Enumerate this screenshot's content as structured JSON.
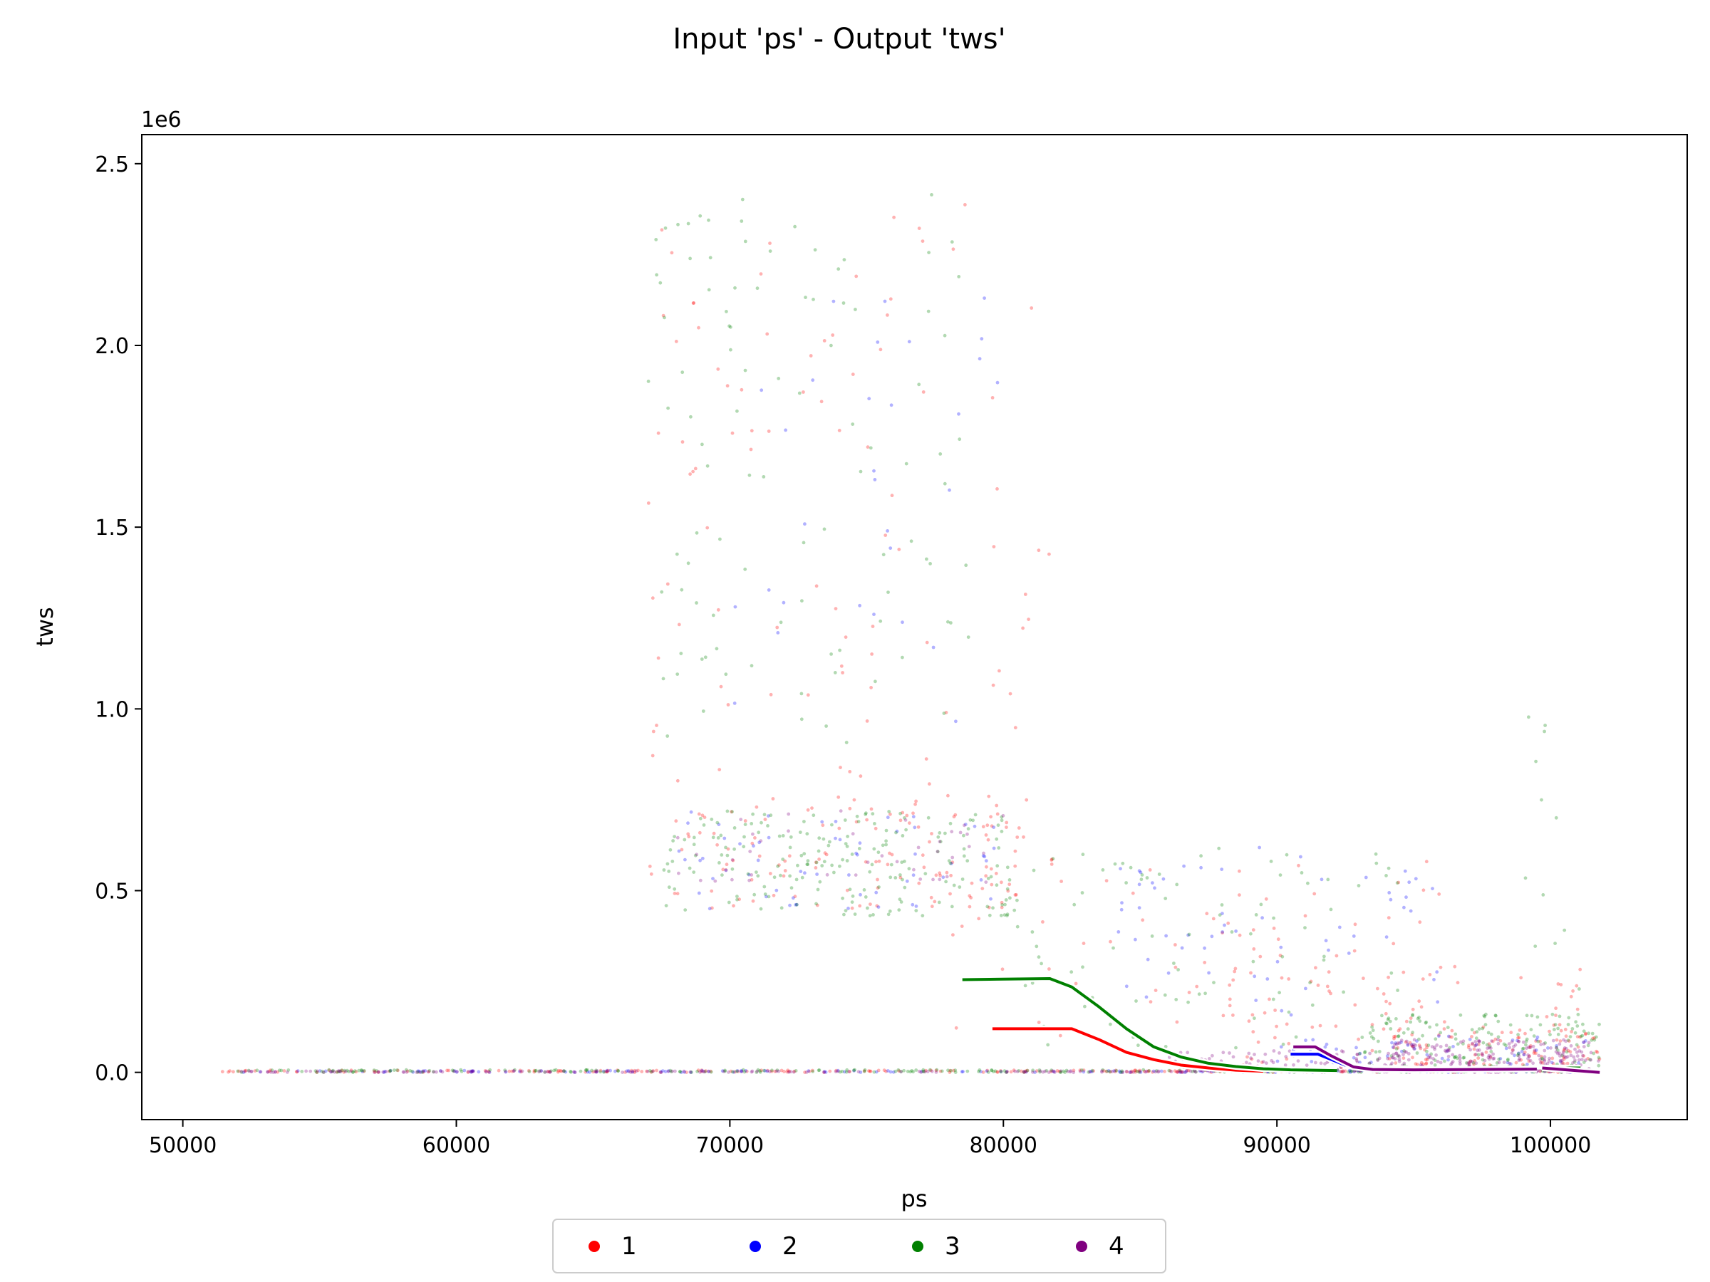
{
  "chart_data": {
    "type": "scatter",
    "title": "Input 'ps' - Output 'tws'",
    "xlabel": "ps",
    "ylabel": "tws",
    "y_offset_label": "1e6",
    "xlim": [
      48500,
      105000
    ],
    "ylim": [
      -130000,
      2580000
    ],
    "x_ticks": [
      50000,
      60000,
      70000,
      80000,
      90000,
      100000
    ],
    "x_tick_labels": [
      "50000",
      "60000",
      "70000",
      "80000",
      "90000",
      "100000"
    ],
    "y_ticks": [
      0,
      500000,
      1000000,
      1500000,
      2000000,
      2500000
    ],
    "y_tick_labels": [
      "0.0",
      "0.5",
      "1.0",
      "1.5",
      "2.0",
      "2.5"
    ],
    "legend": {
      "placement": "bottom-center",
      "entries": [
        {
          "label": "1",
          "color": "#ff0000"
        },
        {
          "label": "2",
          "color": "#0000ff"
        },
        {
          "label": "3",
          "color": "#008000"
        },
        {
          "label": "4",
          "color": "#800080"
        }
      ]
    },
    "series": [
      {
        "name": "1",
        "color": "#ff0000",
        "fit_line": [
          [
            79600,
            120000
          ],
          [
            82500,
            120000
          ],
          [
            83500,
            90000
          ],
          [
            84500,
            55000
          ],
          [
            85500,
            35000
          ],
          [
            86500,
            20000
          ],
          [
            87500,
            12000
          ],
          [
            88500,
            6000
          ],
          [
            89500,
            3000
          ]
        ],
        "scatter_regions": [
          {
            "x": [
              51000,
              101500
            ],
            "y": [
              0,
              6000
            ],
            "n": 220
          },
          {
            "x": [
              67000,
              81000
            ],
            "y": [
              450000,
              760000
            ],
            "n": 130
          },
          {
            "x": [
              67000,
              82000
            ],
            "y": [
              760000,
              2460000
            ],
            "n": 90
          },
          {
            "x": [
              78000,
              96000
            ],
            "y": [
              100000,
              600000
            ],
            "n": 70
          },
          {
            "x": [
              88000,
              101500
            ],
            "y": [
              0,
              300000
            ],
            "n": 90
          },
          {
            "x": [
              94000,
              101800
            ],
            "y": [
              20000,
              120000
            ],
            "n": 90
          }
        ]
      },
      {
        "name": "2",
        "color": "#0000ff",
        "fit_line": [
          [
            90500,
            50000
          ],
          [
            91500,
            50000
          ],
          [
            92000,
            35000
          ],
          [
            92500,
            20000
          ],
          [
            93500,
            12000
          ],
          [
            95500,
            8000
          ]
        ],
        "scatter_regions": [
          {
            "x": [
              52000,
              101500
            ],
            "y": [
              0,
              5000
            ],
            "n": 140
          },
          {
            "x": [
              68000,
              80000
            ],
            "y": [
              450000,
              720000
            ],
            "n": 60
          },
          {
            "x": [
              70000,
              80000
            ],
            "y": [
              900000,
              2200000
            ],
            "n": 30
          },
          {
            "x": [
              84000,
              96000
            ],
            "y": [
              150000,
              620000
            ],
            "n": 60
          },
          {
            "x": [
              90000,
              101500
            ],
            "y": [
              20000,
              100000
            ],
            "n": 60
          }
        ]
      },
      {
        "name": "3",
        "color": "#008000",
        "fit_line": [
          [
            78500,
            255000
          ],
          [
            81700,
            258000
          ],
          [
            82500,
            235000
          ],
          [
            83500,
            180000
          ],
          [
            84500,
            120000
          ],
          [
            85500,
            70000
          ],
          [
            86500,
            42000
          ],
          [
            87500,
            25000
          ],
          [
            88500,
            16000
          ],
          [
            89500,
            10000
          ],
          [
            90500,
            7000
          ],
          [
            92200,
            5000
          ]
        ],
        "fit_line_tail": [
          [
            99800,
            12000
          ],
          [
            101100,
            12000
          ]
        ],
        "scatter_regions": [
          {
            "x": [
              52000,
              101500
            ],
            "y": [
              0,
              7000
            ],
            "n": 260
          },
          {
            "x": [
              67500,
              80500
            ],
            "y": [
              430000,
              720000
            ],
            "n": 200
          },
          {
            "x": [
              67000,
              79000
            ],
            "y": [
              900000,
              2420000
            ],
            "n": 100
          },
          {
            "x": [
              80000,
              95000
            ],
            "y": [
              50000,
              620000
            ],
            "n": 90
          },
          {
            "x": [
              93000,
              101800
            ],
            "y": [
              10000,
              160000
            ],
            "n": 160
          },
          {
            "x": [
              99000,
              101200
            ],
            "y": [
              200000,
              1000000
            ],
            "n": 12
          }
        ]
      },
      {
        "name": "4",
        "color": "#800080",
        "fit_line": [
          [
            90600,
            70000
          ],
          [
            91400,
            70000
          ],
          [
            92000,
            45000
          ],
          [
            92800,
            15000
          ],
          [
            93500,
            8000
          ],
          [
            95000,
            7000
          ],
          [
            99500,
            9000
          ]
        ],
        "fit_line_tail": [
          [
            99700,
            12000
          ],
          [
            101800,
            0
          ]
        ],
        "scatter_regions": [
          {
            "x": [
              52000,
              102000
            ],
            "y": [
              0,
              4000
            ],
            "n": 200
          },
          {
            "x": [
              68000,
              80000
            ],
            "y": [
              500000,
              720000
            ],
            "n": 40
          },
          {
            "x": [
              86000,
              101800
            ],
            "y": [
              0,
              60000
            ],
            "n": 150
          },
          {
            "x": [
              94000,
              101500
            ],
            "y": [
              20000,
              90000
            ],
            "n": 140
          }
        ]
      }
    ]
  }
}
